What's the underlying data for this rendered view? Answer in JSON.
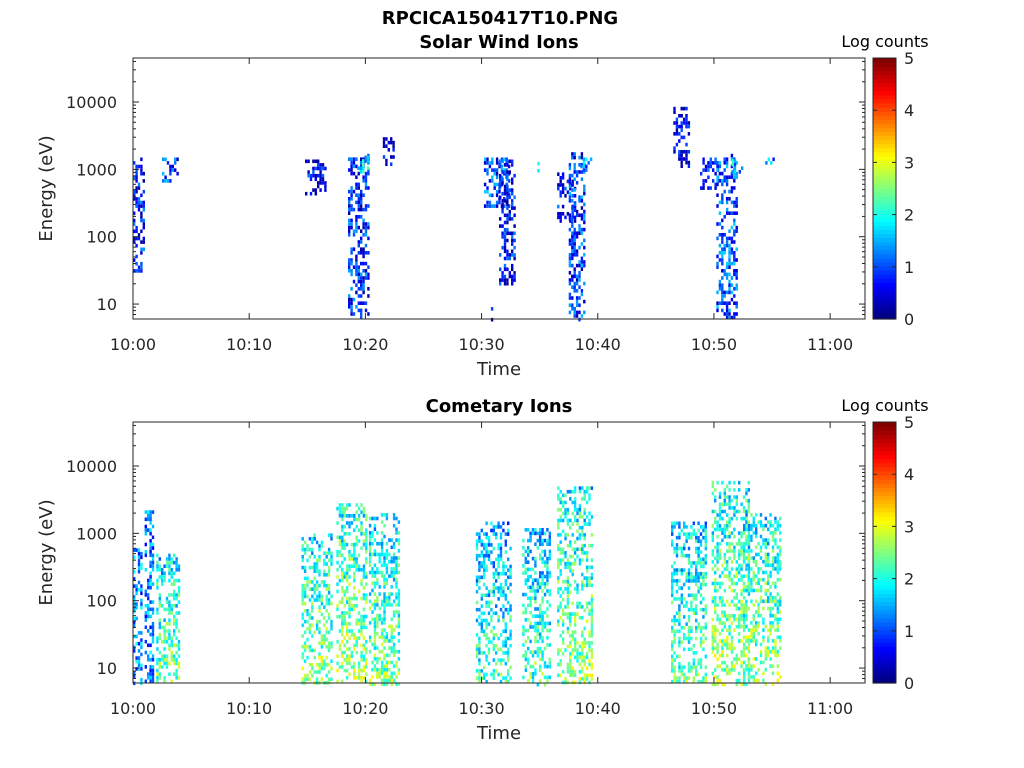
{
  "figure": {
    "title": "RPCICA150417T10.PNG"
  },
  "colors": {
    "colormap": "jet",
    "background": "#ffffff",
    "axis": "#262626"
  },
  "chart_data": [
    {
      "type": "heatmap",
      "title": "Solar Wind Ions",
      "xlabel": "Time",
      "ylabel": "Energy (eV)",
      "colorbar_label": "Log counts",
      "colorbar_ticks": [
        "0",
        "1",
        "2",
        "3",
        "4",
        "5"
      ],
      "clim": [
        0,
        5
      ],
      "x_ticks": [
        "10:00",
        "10:10",
        "10:20",
        "10:30",
        "10:40",
        "10:50",
        "11:00"
      ],
      "xlim": [
        "10:00",
        "11:03"
      ],
      "y_ticks": [
        "10",
        "100",
        "1000",
        "10000"
      ],
      "ylim": [
        6,
        45000
      ],
      "yscale": "log",
      "grid": false,
      "bursts": [
        {
          "t": [
            0.0,
            1.0
          ],
          "e": [
            30,
            1500
          ],
          "c": 0.7
        },
        {
          "t": [
            2.5,
            3.8
          ],
          "e": [
            700,
            1500
          ],
          "c": 1.0
        },
        {
          "t": [
            14.8,
            16.5
          ],
          "e": [
            450,
            1400
          ],
          "c": 0.5
        },
        {
          "t": [
            18.5,
            20.2
          ],
          "e": [
            6,
            1700
          ],
          "c": 0.8
        },
        {
          "t": [
            19.3,
            20.3
          ],
          "e": [
            900,
            1600
          ],
          "c": 1.8
        },
        {
          "t": [
            21.5,
            22.5
          ],
          "e": [
            1200,
            3000
          ],
          "c": 0.3
        },
        {
          "t": [
            30.8,
            31.0
          ],
          "e": [
            6,
            9
          ],
          "c": 0.4
        },
        {
          "t": [
            30.2,
            32.3
          ],
          "e": [
            300,
            1500
          ],
          "c": 1.0
        },
        {
          "t": [
            31.5,
            32.8
          ],
          "e": [
            20,
            1400
          ],
          "c": 0.6
        },
        {
          "t": [
            34.8,
            35.1
          ],
          "e": [
            1000,
            1300
          ],
          "c": 1.5
        },
        {
          "t": [
            36.5,
            38.0
          ],
          "e": [
            180,
            900
          ],
          "c": 0.6
        },
        {
          "t": [
            37.5,
            38.8
          ],
          "e": [
            6,
            1800
          ],
          "c": 0.9
        },
        {
          "t": [
            38.5,
            39.5
          ],
          "e": [
            1000,
            1500
          ],
          "c": 1.2
        },
        {
          "t": [
            46.5,
            47.8
          ],
          "e": [
            1100,
            8500
          ],
          "c": 0.4
        },
        {
          "t": [
            48.8,
            50.3
          ],
          "e": [
            500,
            1500
          ],
          "c": 0.6
        },
        {
          "t": [
            50.2,
            52.0
          ],
          "e": [
            6,
            1700
          ],
          "c": 1.0
        },
        {
          "t": [
            51.5,
            52.5
          ],
          "e": [
            900,
            1600
          ],
          "c": 1.6
        },
        {
          "t": [
            54.0,
            55.2
          ],
          "e": [
            1200,
            1500
          ],
          "c": 1.7
        }
      ]
    },
    {
      "type": "heatmap",
      "title": "Cometary Ions",
      "xlabel": "Time",
      "ylabel": "Energy (eV)",
      "colorbar_label": "Log counts",
      "colorbar_ticks": [
        "0",
        "1",
        "2",
        "3",
        "4",
        "5"
      ],
      "clim": [
        0,
        5
      ],
      "x_ticks": [
        "10:00",
        "10:10",
        "10:20",
        "10:30",
        "10:40",
        "10:50",
        "11:00"
      ],
      "xlim": [
        "10:00",
        "11:03"
      ],
      "y_ticks": [
        "10",
        "100",
        "1000",
        "10000"
      ],
      "ylim": [
        6,
        45000
      ],
      "yscale": "log",
      "grid": false,
      "bursts": [
        {
          "t": [
            0.0,
            0.8
          ],
          "e": [
            6,
            600
          ],
          "c": 1.3
        },
        {
          "t": [
            1.0,
            1.8
          ],
          "e": [
            6,
            2200
          ],
          "c": 1.2
        },
        {
          "t": [
            2.0,
            4.0
          ],
          "e": [
            6,
            500
          ],
          "c": 2.1
        },
        {
          "t": [
            14.5,
            17.0
          ],
          "e": [
            6,
            1000
          ],
          "c": 2.2
        },
        {
          "t": [
            17.5,
            20.0
          ],
          "e": [
            6,
            2800
          ],
          "c": 2.3
        },
        {
          "t": [
            20.3,
            22.8
          ],
          "e": [
            6,
            2000
          ],
          "c": 2.1
        },
        {
          "t": [
            29.5,
            32.5
          ],
          "e": [
            6,
            1500
          ],
          "c": 1.8
        },
        {
          "t": [
            33.5,
            35.8
          ],
          "e": [
            6,
            1200
          ],
          "c": 1.9
        },
        {
          "t": [
            36.5,
            39.5
          ],
          "e": [
            6,
            5000
          ],
          "c": 2.2
        },
        {
          "t": [
            46.3,
            49.3
          ],
          "e": [
            6,
            1500
          ],
          "c": 2.0
        },
        {
          "t": [
            49.8,
            53.0
          ],
          "e": [
            6,
            6000
          ],
          "c": 2.3
        },
        {
          "t": [
            52.5,
            55.8
          ],
          "e": [
            6,
            2000
          ],
          "c": 2.2
        }
      ]
    }
  ]
}
